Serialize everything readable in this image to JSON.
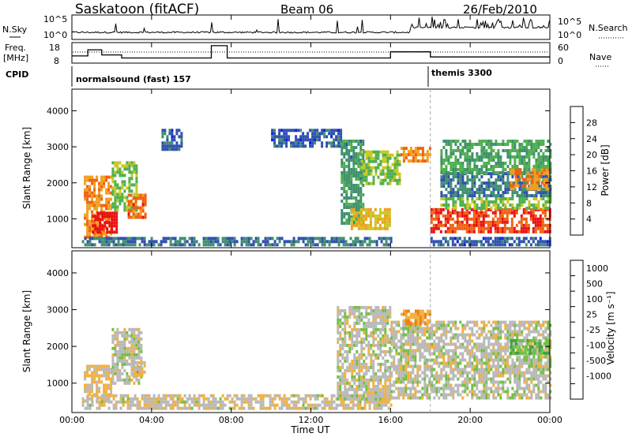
{
  "header": {
    "station": "Saskatoon (fitACF)",
    "beam": "Beam 06",
    "date": "26/Feb/2010"
  },
  "noise_panel": {
    "left_label": "N.Sky",
    "right_label": "N.Search",
    "left_ticks": [
      "10^5",
      "10^0"
    ],
    "right_ticks": [
      "10^5",
      "10^0"
    ]
  },
  "freq_panel": {
    "left_label_line1": "Freq.",
    "left_label_line2": "[MHz]",
    "left_ticks": [
      "18",
      "8"
    ],
    "right_ticks": [
      "60",
      "0"
    ],
    "right_label": "Nave"
  },
  "cpid": {
    "label": "CPID",
    "segments": [
      {
        "name": "normalsound (fast) 157",
        "start_hour": 0,
        "end_hour": 18
      },
      {
        "name": "themis 3300",
        "start_hour": 18,
        "end_hour": 24
      }
    ]
  },
  "power_panel": {
    "ylabel": "Slant Range [km]",
    "yticks": [
      "1000",
      "2000",
      "3000",
      "4000"
    ],
    "colorbar_label": "Power [dB]",
    "colorbar_ticks": [
      "4",
      "8",
      "12",
      "16",
      "20",
      "24",
      "28"
    ],
    "colorbar_colors": [
      "#1020e0",
      "#2f4fb0",
      "#3f8f6f",
      "#4fb04f",
      "#c8c820",
      "#f0a020",
      "#f06010",
      "#e81010"
    ]
  },
  "velocity_panel": {
    "ylabel": "Slant Range [km]",
    "yticks": [
      "1000",
      "2000",
      "3000",
      "4000"
    ],
    "colorbar_label": "Velocity [m s⁻¹]",
    "colorbar_ticks": [
      "1000",
      "500",
      "100",
      "25",
      "-25",
      "-100",
      "-500",
      "-1000"
    ],
    "colorbar_colors": [
      "#2040c0",
      "#3070b0",
      "#40a040",
      "#70c040",
      "#b8b8b8",
      "#f0b040",
      "#f08010",
      "#e83010",
      "#e00000"
    ]
  },
  "time_axis": {
    "xlabel": "Time UT",
    "ticks": [
      "00:00",
      "04:00",
      "08:00",
      "12:00",
      "16:00",
      "20:00",
      "00:00"
    ]
  },
  "chart_data": {
    "type": "heatmap",
    "title": "Saskatoon (fitACF)",
    "subtitle": "Beam 06",
    "date": "26/Feb/2010",
    "xlabel": "Time UT",
    "x_range_hours": [
      0,
      24
    ],
    "frequency_MHz": {
      "ylim": [
        8,
        18
      ],
      "steps": [
        {
          "from": 0.0,
          "to": 0.8,
          "value": 11.5
        },
        {
          "from": 0.8,
          "to": 1.5,
          "value": 14.5
        },
        {
          "from": 1.5,
          "to": 2.5,
          "value": 12
        },
        {
          "from": 2.5,
          "to": 7.0,
          "value": 10.5
        },
        {
          "from": 7.0,
          "to": 7.8,
          "value": 16.5
        },
        {
          "from": 7.8,
          "to": 16.0,
          "value": 10.5
        },
        {
          "from": 16.0,
          "to": 18.0,
          "value": 13.5
        },
        {
          "from": 18.0,
          "to": 24.0,
          "value": 11
        }
      ]
    },
    "power_dB": {
      "ylabel": "Slant Range [km]",
      "ylim": [
        200,
        4600
      ],
      "colorbar_range": [
        0,
        30
      ],
      "regions": [
        {
          "t0": 0.6,
          "t1": 2.0,
          "r0": 500,
          "r1": 2200,
          "value": 22
        },
        {
          "t0": 1.0,
          "t1": 2.2,
          "r0": 600,
          "r1": 1200,
          "value": 29
        },
        {
          "t0": 2.0,
          "t1": 3.3,
          "r0": 1200,
          "r1": 2600,
          "value": 14
        },
        {
          "t0": 2.8,
          "t1": 3.7,
          "r0": 1000,
          "r1": 1700,
          "value": 24
        },
        {
          "t0": 4.5,
          "t1": 5.5,
          "r0": 2900,
          "r1": 3500,
          "value": 6
        },
        {
          "t0": 10.0,
          "t1": 13.5,
          "r0": 3000,
          "r1": 3500,
          "value": 6
        },
        {
          "t0": 13.5,
          "t1": 14.6,
          "r0": 900,
          "r1": 3200,
          "value": 10
        },
        {
          "t0": 14.0,
          "t1": 16.0,
          "r0": 700,
          "r1": 1300,
          "value": 19
        },
        {
          "t0": 14.5,
          "t1": 16.5,
          "r0": 2000,
          "r1": 2900,
          "value": 15
        },
        {
          "t0": 16.5,
          "t1": 18.0,
          "r0": 2600,
          "r1": 3000,
          "value": 22
        },
        {
          "t0": 18.0,
          "t1": 24.0,
          "r0": 650,
          "r1": 1300,
          "value": 26
        },
        {
          "t0": 18.5,
          "t1": 24.0,
          "r0": 1300,
          "r1": 1600,
          "value": 14
        },
        {
          "t0": 18.5,
          "t1": 24.0,
          "r0": 1600,
          "r1": 2300,
          "value": 8
        },
        {
          "t0": 18.5,
          "t1": 24.0,
          "r0": 2300,
          "r1": 3200,
          "value": 12
        },
        {
          "t0": 22.0,
          "t1": 24.0,
          "r0": 1800,
          "r1": 2400,
          "value": 22
        },
        {
          "t0": 0.5,
          "t1": 16.0,
          "r0": 300,
          "r1": 500,
          "value": 8
        },
        {
          "t0": 18.0,
          "t1": 24.0,
          "r0": 300,
          "r1": 500,
          "value": 6
        }
      ]
    },
    "velocity_ms": {
      "ylabel": "Slant Range [km]",
      "ylim": [
        200,
        4600
      ],
      "colorbar_range": [
        -1000,
        1000
      ],
      "regions": [
        {
          "t0": 0.6,
          "t1": 2.0,
          "r0": 500,
          "r1": 1500,
          "value": -150
        },
        {
          "t0": 2.0,
          "t1": 3.5,
          "r0": 1000,
          "r1": 2500,
          "value": 0
        },
        {
          "t0": 3.0,
          "t1": 3.7,
          "r0": 1200,
          "r1": 1600,
          "value": -200
        },
        {
          "t0": 0.5,
          "t1": 16.0,
          "r0": 300,
          "r1": 700,
          "value": -60
        },
        {
          "t0": 13.3,
          "t1": 16.0,
          "r0": 600,
          "r1": 3100,
          "value": 0
        },
        {
          "t0": 16.0,
          "t1": 24.0,
          "r0": 600,
          "r1": 2700,
          "value": 0
        },
        {
          "t0": 22.0,
          "t1": 24.0,
          "r0": 1800,
          "r1": 2200,
          "value": 300
        },
        {
          "t0": 16.5,
          "t1": 18.0,
          "r0": 2600,
          "r1": 3000,
          "value": -300
        }
      ]
    }
  }
}
